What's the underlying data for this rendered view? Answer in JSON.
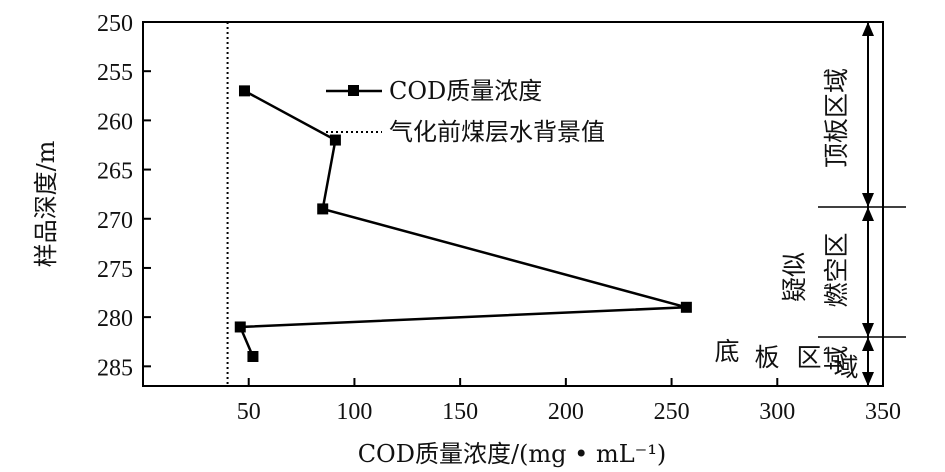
{
  "chart_data": {
    "type": "line",
    "xlabel": "COD质量浓度/(mg • mL⁻¹)",
    "ylabel": "样品深度/m",
    "xlim": [
      0,
      350
    ],
    "ylim": [
      250,
      287
    ],
    "y_inverted": true,
    "x_ticks": [
      50,
      100,
      150,
      200,
      250,
      300,
      350
    ],
    "y_ticks": [
      250,
      255,
      260,
      265,
      270,
      275,
      280,
      285
    ],
    "legend_position": "upper-middle",
    "series": [
      {
        "name": "COD质量浓度",
        "marker": "square",
        "color": "#000000",
        "points": [
          {
            "x": 48,
            "y": 257
          },
          {
            "x": 91,
            "y": 262
          },
          {
            "x": 85,
            "y": 269
          },
          {
            "x": 257,
            "y": 279
          },
          {
            "x": 46,
            "y": 281
          },
          {
            "x": 52,
            "y": 284
          }
        ]
      }
    ],
    "reference_lines": [
      {
        "name": "气化前煤层水背景值",
        "style": "dotted",
        "x": 40
      }
    ],
    "zones": [
      {
        "label": "顶板区域",
        "y_from": 250,
        "y_to": 269
      },
      {
        "label_lines": [
          "疑似",
          "燃空区"
        ],
        "label_tail": "域",
        "y_from": 269,
        "y_to": 282
      },
      {
        "label_chars": [
          "底",
          "板",
          "区"
        ],
        "label_tail": "域",
        "y_from": 282,
        "y_to": 287
      }
    ]
  }
}
